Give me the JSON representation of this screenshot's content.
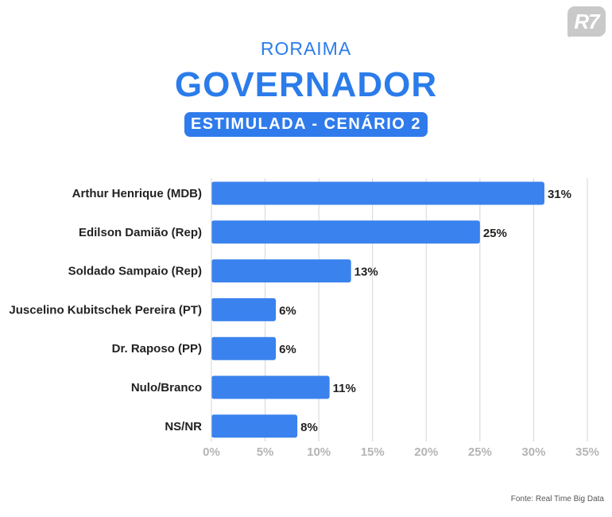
{
  "brand": {
    "logo_text": "R7",
    "accent_color": "#2f7bec",
    "bar_color": "#3a82ee"
  },
  "header": {
    "region": "RORAIMA",
    "title": "GOVERNADOR",
    "subtitle": "ESTIMULADA - CENÁRIO 2"
  },
  "footer": {
    "source": "Fonte: Real Time Big Data"
  },
  "chart_data": {
    "type": "bar",
    "orientation": "horizontal",
    "categories": [
      "Arthur Henrique (MDB)",
      "Edilson Damião (Rep)",
      "Soldado Sampaio (Rep)",
      "Juscelino Kubitschek Pereira (PT)",
      "Dr. Raposo (PP)",
      "Nulo/Branco",
      "NS/NR"
    ],
    "values": [
      31,
      25,
      13,
      6,
      6,
      11,
      8
    ],
    "value_labels": [
      "31%",
      "25%",
      "13%",
      "6%",
      "6%",
      "11%",
      "8%"
    ],
    "xlim": [
      0,
      35
    ],
    "x_ticks": [
      0,
      5,
      10,
      15,
      20,
      25,
      30,
      35
    ],
    "x_tick_labels": [
      "0%",
      "5%",
      "10%",
      "15%",
      "20%",
      "25%",
      "30%",
      "35%"
    ],
    "grid": true
  }
}
